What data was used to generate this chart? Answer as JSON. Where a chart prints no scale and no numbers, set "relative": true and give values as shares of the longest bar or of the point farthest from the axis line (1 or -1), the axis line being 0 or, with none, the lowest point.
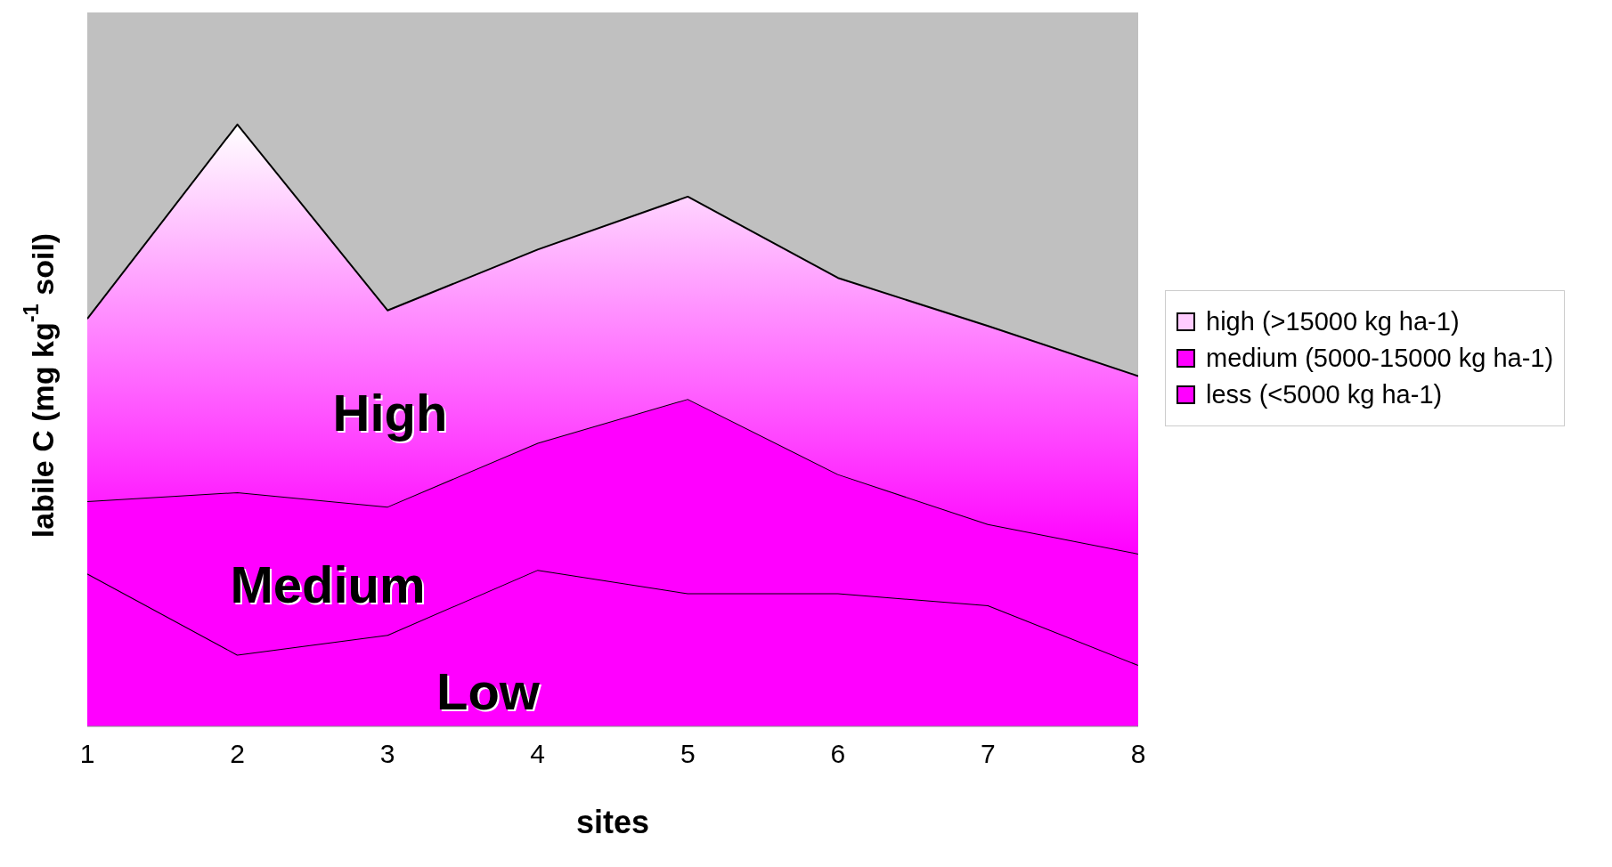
{
  "chart_data": {
    "type": "area",
    "stacked": true,
    "relative": true,
    "xlabel": "sites",
    "ylabel": "labile C (mg kg$^{-1}$ soil)",
    "x": [
      1,
      2,
      3,
      4,
      5,
      6,
      7,
      8
    ],
    "xlim": [
      1,
      8
    ],
    "xticks": [
      1,
      2,
      3,
      4,
      5,
      6,
      7,
      8
    ],
    "legend": "right",
    "series": [
      {
        "name": "less (<5000 kg ha-1)",
        "color": "#ff00ff",
        "values": [
          0.254,
          0.119,
          0.152,
          0.26,
          0.221,
          0.221,
          0.201,
          0.102
        ]
      },
      {
        "name": "medium (5000-15000 kg ha-1)",
        "color": "#ff00ff",
        "values": [
          0.12,
          0.27,
          0.213,
          0.211,
          0.323,
          0.198,
          0.135,
          0.185
        ]
      },
      {
        "name": "high (>15000 kg ha-1)",
        "color": "#ffccff",
        "values": [
          0.303,
          0.611,
          0.326,
          0.321,
          0.336,
          0.326,
          0.329,
          0.295
        ]
      }
    ],
    "annotations": [
      "High",
      "Medium",
      "Low"
    ]
  }
}
